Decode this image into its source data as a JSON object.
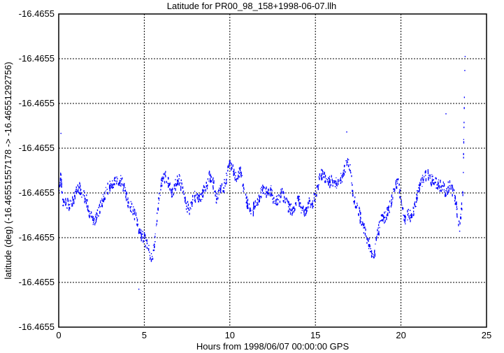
{
  "chart_data": {
    "type": "scatter",
    "title": "Latitude for PR00_98_158+1998-06-07.llh",
    "xlabel": "Hours from 1998/06/07 00:00:00 GPS",
    "ylabel": "latitude (deg) (-16.46551557178 -> -16.46551292756)",
    "xlim": [
      0,
      25
    ],
    "ylim": [
      -16.46551557178,
      -16.46551292756
    ],
    "x_ticks": [
      "0",
      "5",
      "10",
      "15",
      "20",
      "25"
    ],
    "y_ticks": [
      "-16.4655",
      "-16.4655",
      "-16.4655",
      "-16.4655",
      "-16.4655",
      "-16.4655",
      "-16.4655",
      "-16.4655"
    ],
    "grid": true,
    "marker_color": "#0000ff",
    "series": [
      {
        "x": [
          0.0,
          0.1,
          0.2,
          0.4,
          0.6,
          0.8,
          1.0,
          1.2,
          1.4,
          1.6,
          1.8,
          2.0,
          2.2,
          2.4,
          2.6,
          2.8,
          3.0,
          3.2,
          3.4,
          3.6,
          3.8,
          4.0,
          4.2,
          4.4,
          4.6,
          4.8,
          5.0,
          5.2,
          5.4,
          5.6,
          5.8,
          6.0,
          6.2,
          6.4,
          6.6,
          6.8,
          7.0,
          7.2,
          7.4,
          7.6,
          7.8,
          8.0,
          8.2,
          8.4,
          8.6,
          8.8,
          9.0,
          9.2,
          9.4,
          9.6,
          9.8,
          10.0,
          10.2,
          10.4,
          10.6,
          10.8,
          11.0,
          11.2,
          11.4,
          11.6,
          11.8,
          12.0,
          12.2,
          12.4,
          12.6,
          12.8,
          13.0,
          13.2,
          13.4,
          13.6,
          13.8,
          14.0,
          14.2,
          14.4,
          14.6,
          14.8,
          15.0,
          15.2,
          15.4,
          15.6,
          15.8,
          16.0,
          16.2,
          16.4,
          16.6,
          16.8,
          17.0,
          17.2,
          17.4,
          17.6,
          17.8,
          18.0,
          18.2,
          18.4,
          18.6,
          18.8,
          19.0,
          19.2,
          19.4,
          19.6,
          19.8,
          20.0,
          20.2,
          20.4,
          20.6,
          20.8,
          21.0,
          21.2,
          21.4,
          21.6,
          21.8,
          22.0,
          22.2,
          22.4,
          22.6,
          22.8,
          23.0,
          23.2,
          23.4,
          23.6,
          23.7,
          23.72
        ],
        "y": [
          -16.4655143737,
          -16.4655142852,
          -16.4655144917,
          -16.4655145212,
          -16.465514533,
          -16.4655144917,
          -16.4655144032,
          -16.4655143914,
          -16.4655144504,
          -16.4655144917,
          -16.4655146097,
          -16.4655146864,
          -16.4655146392,
          -16.4655145507,
          -16.4655144622,
          -16.4655144032,
          -16.4655143737,
          -16.465514356,
          -16.4655143147,
          -16.4655143324,
          -16.4655143737,
          -16.4655144917,
          -16.4655145507,
          -16.4655146097,
          -16.4655146982,
          -16.4655147867,
          -16.4655148162,
          -16.4655149047,
          -16.4655149932,
          -16.4655148457,
          -16.4655145212,
          -16.4655143324,
          -16.4655142852,
          -16.465514356,
          -16.4655144327,
          -16.465514356,
          -16.4655143147,
          -16.4655143914,
          -16.4655145212,
          -16.4655145802,
          -16.4655144917,
          -16.4655144504,
          -16.4655144917,
          -16.4655144327,
          -16.4655143737,
          -16.4655142852,
          -16.4655143442,
          -16.4655144917,
          -16.4655144032,
          -16.4655143914,
          -16.4655142852,
          -16.465514179,
          -16.4655142557,
          -16.4655143147,
          -16.4655142262,
          -16.4655144032,
          -16.4655145212,
          -16.4655146097,
          -16.4655145507,
          -16.4655144917,
          -16.4655144327,
          -16.4655143914,
          -16.4655144327,
          -16.4655144032,
          -16.4655145212,
          -16.4655144917,
          -16.4655144327,
          -16.4655144917,
          -16.4655145507,
          -16.4655145802,
          -16.4655145212,
          -16.4655144917,
          -16.4655145802,
          -16.4655146097,
          -16.4655145212,
          -16.4655145212,
          -16.4655144504,
          -16.4655143147,
          -16.4655142557,
          -16.4655143147,
          -16.4655143324,
          -16.4655143324,
          -16.465514356,
          -16.4655143324,
          -16.4655142734,
          -16.465514179,
          -16.4655141967,
          -16.4655145094,
          -16.4655145212,
          -16.4655146392,
          -16.4655147277,
          -16.4655148162,
          -16.4655149047,
          -16.4655149814,
          -16.4655147867,
          -16.4655146687,
          -16.4655146392,
          -16.4655145802,
          -16.4655145212,
          -16.4655144032,
          -16.4655143147,
          -16.4655145212,
          -16.4655146687,
          -16.4655146097,
          -16.4655146392,
          -16.4655145507,
          -16.4655143914,
          -16.4655143442,
          -16.4655142852,
          -16.4655142852,
          -16.4655143324,
          -16.4655143442,
          -16.4655143737,
          -16.4655143737,
          -16.465514415,
          -16.4655143737,
          -16.4655144032,
          -16.4655145212,
          -16.4655147572,
          -16.4655144327,
          -16.4655134002,
          -16.4655132822
        ]
      },
      {
        "x": [
          0.1,
          4.65,
          16.8,
          22.6
        ],
        "y": [
          -16.4655139312,
          -16.4655152469,
          -16.4655139194,
          -16.465513766
        ]
      }
    ]
  }
}
